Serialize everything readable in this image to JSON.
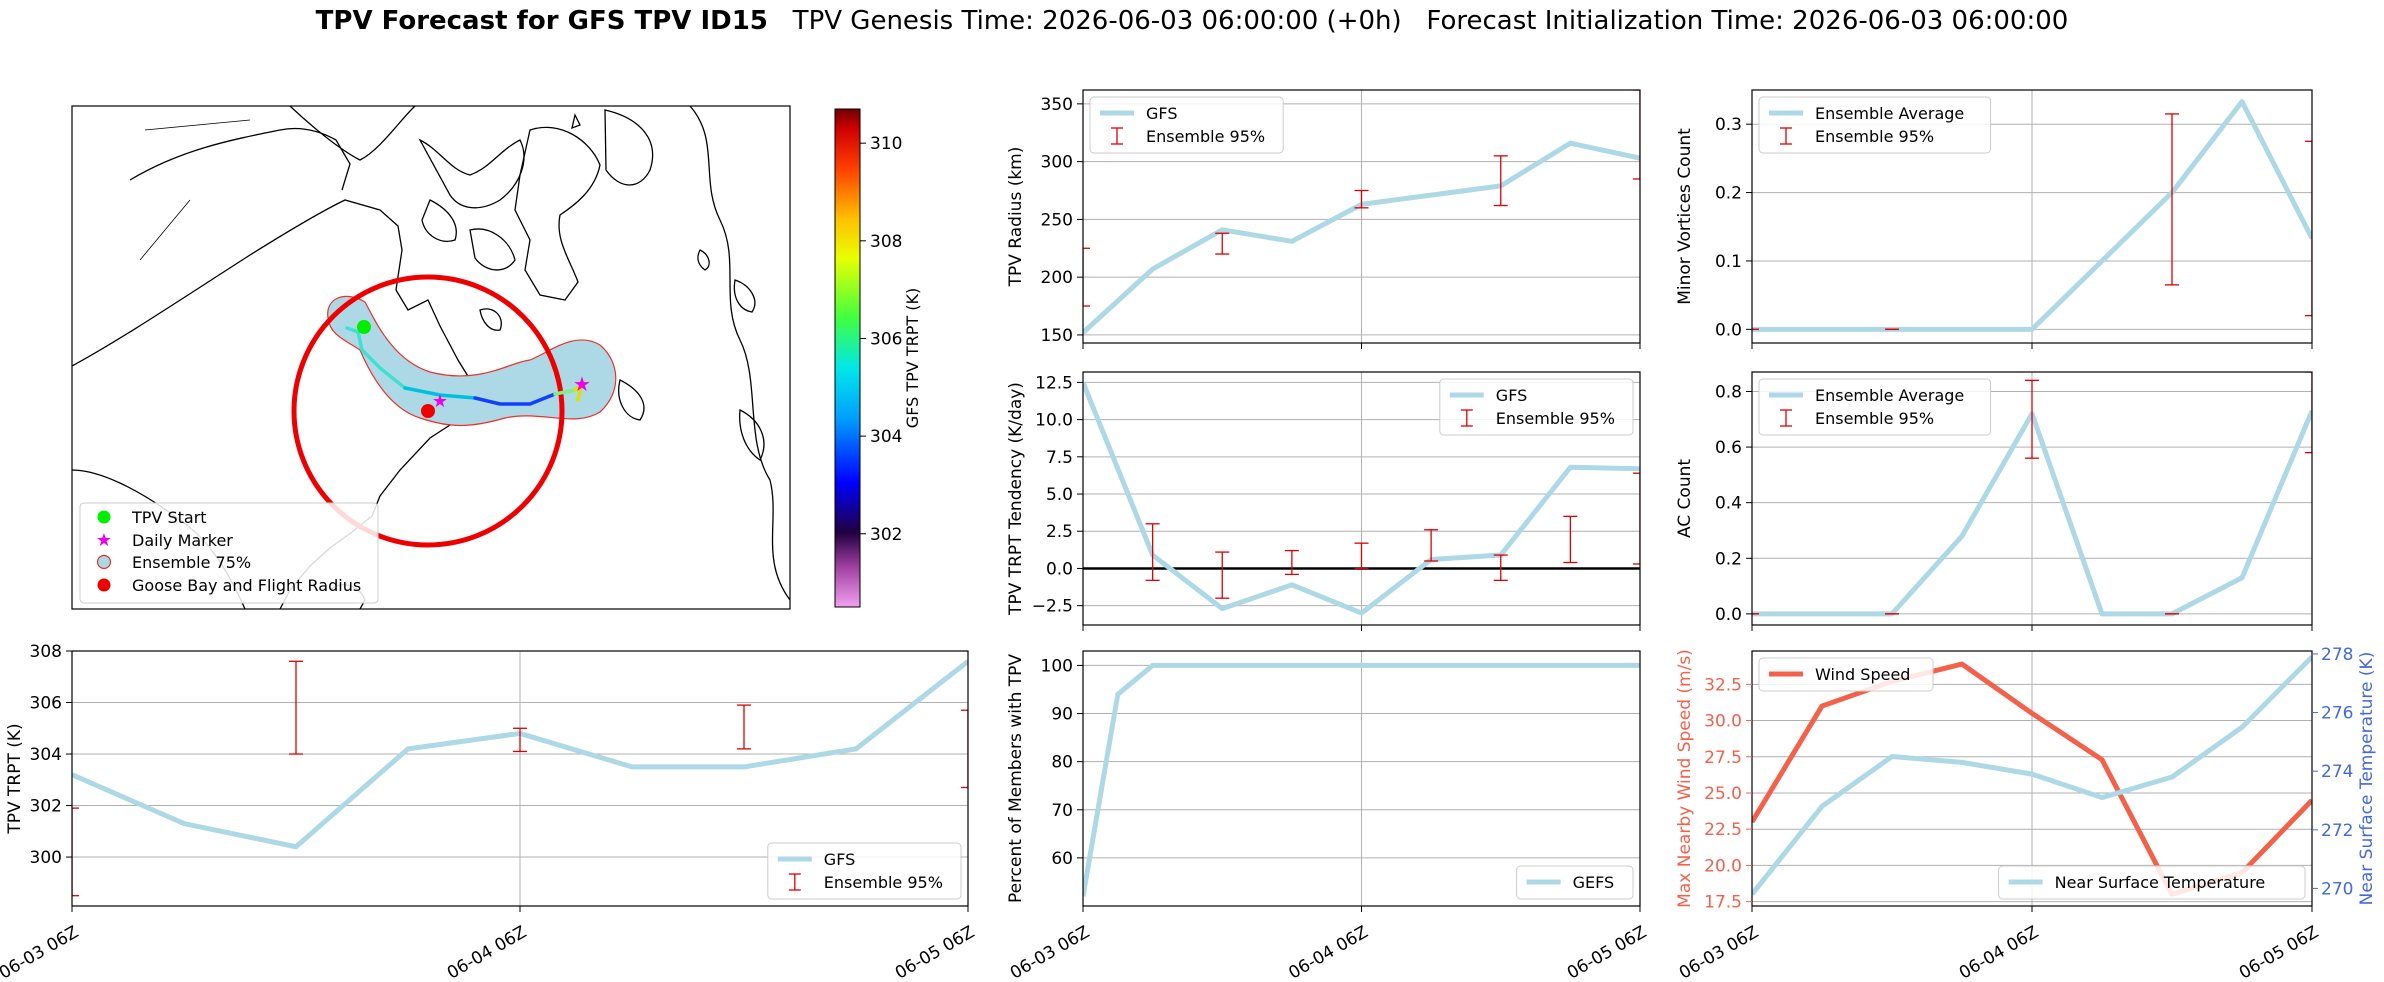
{
  "title": {
    "bold": "TPV Forecast for GFS TPV ID15",
    "rest": "   TPV Genesis Time: 2026-06-03 06:00:00 (+0h)   Forecast Initialization Time: 2026-06-03 06:00:00"
  },
  "map": {
    "legend": [
      "TPV Start",
      "Daily Marker",
      "Ensemble 75%",
      "Goose Bay and Flight Radius"
    ],
    "colorbar_label": "GFS TPV TRPT (K)",
    "colorbar_ticks": [
      302,
      304,
      306,
      308,
      310
    ],
    "colorbar_range": [
      300.5,
      310.7
    ],
    "colors": {
      "start": "#00ee00",
      "daily": "#ee00ee",
      "ensemble_fill": "#add8e6",
      "ensemble_edge": "#e8322a",
      "goose_bay": "#ee0000"
    }
  },
  "chart_data": [
    {
      "id": "radius",
      "type": "line",
      "ylabel": "TPV Radius (km)",
      "ylim": [
        143,
        362
      ],
      "yticks": [
        150,
        200,
        250,
        300,
        350
      ],
      "x": [
        0,
        4,
        8,
        12,
        16,
        20,
        24,
        28,
        32,
        36,
        40,
        44,
        48
      ],
      "series": [
        {
          "name": "GFS",
          "values": [
            152,
            207,
            241,
            231,
            263,
            271,
            279,
            316,
            303
          ],
          "x": [
            0,
            6,
            12,
            18,
            24,
            30,
            36,
            42,
            48
          ]
        }
      ],
      "errorbars": {
        "name": "Ensemble 95%",
        "x": [
          0,
          12,
          24,
          36,
          48
        ],
        "low": [
          175,
          220,
          260,
          262,
          285
        ],
        "high": [
          225,
          238,
          275,
          305,
          362
        ]
      },
      "legend": "top-left",
      "show_xticklabels": false
    },
    {
      "id": "minor",
      "type": "line",
      "ylabel": "Minor Vortices Count",
      "ylim": [
        -0.02,
        0.35
      ],
      "yticks": [
        0.0,
        0.1,
        0.2,
        0.3
      ],
      "series": [
        {
          "name": "Ensemble Average",
          "x": [
            0,
            6,
            12,
            18,
            24,
            30,
            36,
            42,
            48
          ],
          "values": [
            0,
            0,
            0,
            0,
            0,
            0.1,
            0.2,
            0.333,
            0.133
          ]
        }
      ],
      "errorbars": {
        "name": "Ensemble 95%",
        "x": [
          0,
          12,
          36,
          48
        ],
        "low": [
          0,
          0,
          0.065,
          0.02
        ],
        "high": [
          0,
          0,
          0.315,
          0.275
        ]
      },
      "legend": "top-left",
      "show_xticklabels": false
    },
    {
      "id": "tendency",
      "type": "line",
      "ylabel": "TPV TRPT Tendency (K/day)",
      "ylim": [
        -3.8,
        13.2
      ],
      "yticks": [
        -2.5,
        0.0,
        2.5,
        5.0,
        7.5,
        10.0,
        12.5
      ],
      "zero_line": true,
      "series": [
        {
          "name": "GFS",
          "x": [
            0,
            6,
            12,
            18,
            24,
            30,
            36,
            42,
            48
          ],
          "values": [
            12.5,
            0.9,
            -2.7,
            -1.1,
            -3.0,
            0.6,
            0.9,
            6.8,
            6.7
          ]
        }
      ],
      "errorbars": {
        "name": "Ensemble 95%",
        "x": [
          6,
          12,
          18,
          24,
          30,
          36,
          42,
          48
        ],
        "low": [
          -0.8,
          -2.0,
          -0.4,
          0.0,
          0.5,
          -0.8,
          0.4,
          0.3
        ],
        "high": [
          3.0,
          1.1,
          1.2,
          1.7,
          2.6,
          0.9,
          3.5,
          6.4
        ]
      },
      "legend": "top-right",
      "show_xticklabels": false
    },
    {
      "id": "ac",
      "type": "line",
      "ylabel": "AC Count",
      "ylim": [
        -0.04,
        0.87
      ],
      "yticks": [
        0.0,
        0.2,
        0.4,
        0.6,
        0.8
      ],
      "series": [
        {
          "name": "Ensemble Average",
          "x": [
            0,
            6,
            12,
            18,
            24,
            30,
            36,
            42,
            48
          ],
          "values": [
            0,
            0,
            0,
            0.28,
            0.72,
            0,
            0,
            0.13,
            0.73
          ]
        }
      ],
      "errorbars": {
        "name": "Ensemble 95%",
        "x": [
          0,
          12,
          24,
          36,
          48
        ],
        "low": [
          0,
          0,
          0.56,
          0,
          0.58
        ],
        "high": [
          0,
          0,
          0.84,
          0,
          0.87
        ]
      },
      "legend": "top-left",
      "show_xticklabels": false
    },
    {
      "id": "trpt",
      "type": "line",
      "ylabel": "TPV TRPT (K)",
      "ylim": [
        298.1,
        308.0
      ],
      "yticks": [
        300,
        302,
        304,
        306,
        308
      ],
      "xticklabels": [
        "06-03 06Z",
        "06-04 06Z",
        "06-05 06Z"
      ],
      "xtick_pos": [
        0,
        24,
        48
      ],
      "series": [
        {
          "name": "GFS",
          "x": [
            0,
            6,
            12,
            18,
            24,
            30,
            36,
            42,
            48
          ],
          "values": [
            303.2,
            301.3,
            300.4,
            304.2,
            304.8,
            303.5,
            303.5,
            304.2,
            307.6
          ]
        }
      ],
      "errorbars": {
        "name": "Ensemble 95%",
        "x": [
          0,
          12,
          24,
          36,
          48
        ],
        "low": [
          298.5,
          304.0,
          304.1,
          304.2,
          302.7
        ],
        "high": [
          301.9,
          307.6,
          305.0,
          305.9,
          305.7
        ]
      },
      "legend": "bottom-right"
    },
    {
      "id": "members",
      "type": "line",
      "ylabel": "Percent of Members with TPV",
      "ylim": [
        50,
        103
      ],
      "yticks": [
        60,
        70,
        80,
        90,
        100
      ],
      "xticklabels": [
        "06-03 06Z",
        "06-04 06Z",
        "06-05 06Z"
      ],
      "xtick_pos": [
        0,
        24,
        48
      ],
      "series": [
        {
          "name": "GEFS",
          "x": [
            0,
            3,
            6,
            12,
            18,
            24,
            30,
            36,
            42,
            48
          ],
          "values": [
            52,
            94,
            100,
            100,
            100,
            100,
            100,
            100,
            100,
            100
          ]
        }
      ],
      "legend": "bottom-right"
    },
    {
      "id": "wind",
      "type": "line",
      "ylabel": "Max Nearby Wind Speed (m/s)",
      "ylim": [
        17.2,
        34.8
      ],
      "yticks": [
        17.5,
        20.0,
        22.5,
        25.0,
        27.5,
        30.0,
        32.5
      ],
      "y2label": "Near Surface Temperature (K)",
      "y2lim": [
        269.4,
        278.1
      ],
      "y2ticks": [
        270,
        272,
        274,
        276,
        278
      ],
      "xticklabels": [
        "06-03 06Z",
        "06-04 06Z",
        "06-05 06Z"
      ],
      "xtick_pos": [
        0,
        24,
        48
      ],
      "series": [
        {
          "name": "Wind Speed",
          "axis": "left",
          "color": "#f4614a",
          "x": [
            0,
            6,
            12,
            18,
            24,
            30,
            36,
            42,
            48
          ],
          "values": [
            23.0,
            31.0,
            32.7,
            33.9,
            30.5,
            27.3,
            18.0,
            19.5,
            24.5
          ]
        },
        {
          "name": "Near Surface Temperature",
          "axis": "right",
          "color": "#add8e6",
          "x": [
            0,
            6,
            12,
            18,
            24,
            30,
            36,
            42,
            48
          ],
          "values": [
            269.8,
            272.8,
            274.5,
            274.3,
            273.9,
            273.1,
            273.8,
            275.5,
            277.9
          ]
        }
      ],
      "colors": {
        "left_axis": "#f4614a",
        "right_axis": "#4169e1"
      }
    }
  ]
}
